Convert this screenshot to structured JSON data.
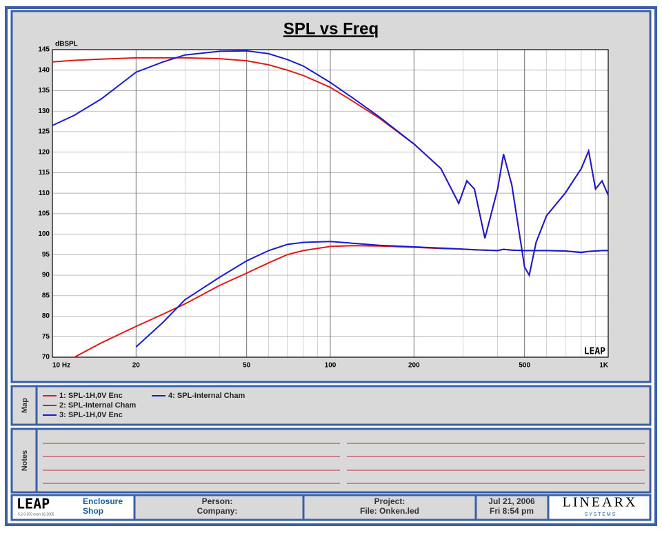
{
  "chart_data": {
    "type": "line",
    "title": "SPL vs Freq",
    "y_label": "dBSPL",
    "logo": "LEAP",
    "x": [
      10,
      12,
      15,
      20,
      25,
      30,
      40,
      50,
      60,
      70,
      80,
      100,
      120,
      150,
      200,
      250,
      290,
      310,
      330,
      360,
      400,
      420,
      450,
      500,
      520,
      550,
      600,
      700,
      800,
      850,
      900,
      950,
      1000
    ],
    "series": [
      {
        "name": "1: SPL-1H,0V Enc",
        "color": "#e01818",
        "values": [
          142,
          142.4,
          142.7,
          143,
          143,
          143,
          142.8,
          142.3,
          141.3,
          140,
          138.7,
          135.8,
          132.5,
          128.3,
          122,
          116,
          107.5,
          113,
          111,
          99,
          111,
          119.5,
          112,
          92,
          90,
          98,
          104.5,
          110,
          116,
          120.3,
          111,
          113,
          109.5
        ]
      },
      {
        "name": "2: SPL-Internal Cham",
        "color": "#e01818",
        "values": [
          null,
          70,
          73.5,
          77.5,
          80.5,
          83,
          87.5,
          90.5,
          93,
          95,
          96,
          97,
          97.2,
          97.1,
          96.8,
          96.5,
          96.4,
          96.3,
          96.2,
          96.1,
          96,
          96.3,
          96.1,
          96,
          96,
          96,
          96,
          95.9,
          95.6,
          95.8,
          95.9,
          96,
          96
        ]
      },
      {
        "name": "3: SPL-1H,0V Enc",
        "color": "#1a1ad0",
        "values": [
          126.5,
          129,
          133,
          139.5,
          142,
          143.7,
          144.6,
          144.7,
          144,
          142.6,
          141,
          137,
          133.3,
          128.6,
          122,
          116,
          107.5,
          113,
          111,
          99,
          111,
          119.5,
          112,
          92,
          90,
          98,
          104.5,
          110,
          116,
          120.3,
          111,
          113,
          109.5
        ]
      },
      {
        "name": "4: SPL-Internal Cham",
        "color": "#1a1ad0",
        "values": [
          null,
          null,
          null,
          72.5,
          78.5,
          84,
          89.5,
          93.5,
          96,
          97.5,
          98,
          98.2,
          97.8,
          97.3,
          96.9,
          96.6,
          96.4,
          96.3,
          96.2,
          96.1,
          96,
          96.3,
          96.1,
          96,
          96,
          96,
          96,
          95.9,
          95.5,
          95.8,
          95.9,
          96,
          96
        ]
      }
    ],
    "x_log": true,
    "grid": true,
    "xlim": [
      10,
      1000
    ],
    "xticks": [
      {
        "value": 10,
        "label": "10  Hz"
      },
      20,
      50,
      100,
      200,
      500,
      {
        "value": 1000,
        "label": "1K"
      }
    ],
    "ylim": [
      70,
      145
    ],
    "yticks": [
      70,
      75,
      80,
      85,
      90,
      95,
      100,
      105,
      110,
      115,
      120,
      125,
      130,
      135,
      140,
      145
    ]
  },
  "ui": {
    "map_label": "Map",
    "notes_label": "Notes",
    "footer": {
      "logo": "LEAP",
      "version": "5.2.0.350   exon 16.2005",
      "product_1": "Enclosure",
      "product_2": "Shop",
      "person": "Person:",
      "company": "Company:",
      "project": "Project:",
      "file": "File: Onken.led",
      "date": "Jul 21, 2006",
      "time": "Fri  8:54 pm",
      "brand": "LINEARX",
      "brand_sub": "S Y S T E M S"
    }
  }
}
